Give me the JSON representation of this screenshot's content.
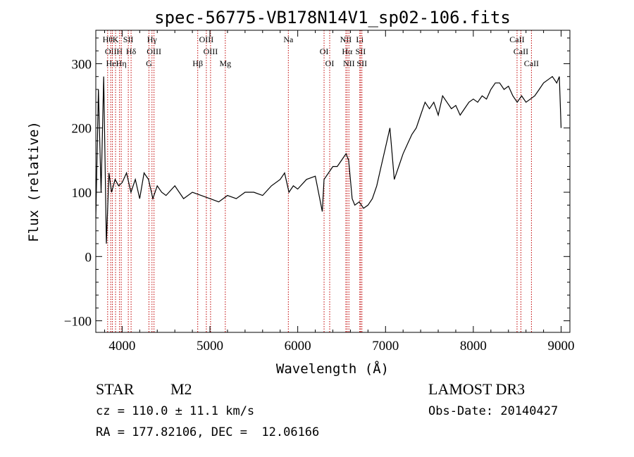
{
  "title": "spec-56775-VB178N14V1_sp02-106.fits",
  "info": {
    "class": "STAR",
    "subclass": "M2",
    "survey": "LAMOST DR3",
    "cz": "cz = 110.0 ± 11.1 km/s",
    "obs_date": "Obs-Date: 20140427",
    "radec": "RA = 177.82106, DEC =  12.06166"
  },
  "chart_data": {
    "type": "line",
    "title": "spec-56775-VB178N14V1_sp02-106.fits",
    "xlabel": "Wavelength (Å)",
    "ylabel": "Flux (relative)",
    "xlim": [
      3700,
      9100
    ],
    "ylim": [
      -118,
      352
    ],
    "xticks": [
      {
        "value": 4000,
        "label": "4000"
      },
      {
        "value": 5000,
        "label": "5000"
      },
      {
        "value": 6000,
        "label": "6000"
      },
      {
        "value": 7000,
        "label": "7000"
      },
      {
        "value": 8000,
        "label": "8000"
      },
      {
        "value": 9000,
        "label": "9000"
      }
    ],
    "yticks": [
      {
        "value": -100,
        "label": "−100"
      },
      {
        "value": 0,
        "label": "0"
      },
      {
        "value": 100,
        "label": "100"
      },
      {
        "value": 200,
        "label": "200"
      },
      {
        "value": 300,
        "label": "300"
      }
    ],
    "series": [
      {
        "color": "#000000",
        "x": [
          3700,
          3730,
          3760,
          3790,
          3820,
          3850,
          3880,
          3920,
          3960,
          4000,
          4050,
          4100,
          4150,
          4200,
          4250,
          4300,
          4350,
          4400,
          4450,
          4500,
          4600,
          4700,
          4800,
          4900,
          5000,
          5100,
          5200,
          5300,
          5400,
          5500,
          5600,
          5700,
          5800,
          5850,
          5900,
          5950,
          6000,
          6100,
          6200,
          6280,
          6300,
          6350,
          6400,
          6450,
          6500,
          6550,
          6580,
          6620,
          6650,
          6700,
          6750,
          6800,
          6850,
          6900,
          6950,
          7000,
          7050,
          7100,
          7150,
          7200,
          7250,
          7300,
          7350,
          7400,
          7450,
          7500,
          7550,
          7600,
          7650,
          7700,
          7750,
          7800,
          7850,
          7900,
          7950,
          8000,
          8050,
          8100,
          8150,
          8200,
          8250,
          8300,
          8350,
          8400,
          8450,
          8500,
          8550,
          8600,
          8650,
          8700,
          8750,
          8800,
          8850,
          8900,
          8950,
          8980,
          9000
        ],
        "y": [
          60,
          260,
          100,
          280,
          20,
          130,
          100,
          120,
          110,
          115,
          130,
          100,
          120,
          90,
          130,
          120,
          90,
          110,
          100,
          95,
          110,
          90,
          100,
          95,
          90,
          85,
          95,
          90,
          100,
          100,
          95,
          110,
          120,
          130,
          100,
          110,
          105,
          120,
          125,
          70,
          120,
          130,
          140,
          140,
          150,
          160,
          150,
          90,
          80,
          85,
          75,
          80,
          90,
          110,
          140,
          170,
          200,
          120,
          140,
          160,
          175,
          190,
          200,
          220,
          240,
          230,
          240,
          220,
          250,
          240,
          230,
          235,
          220,
          230,
          240,
          245,
          240,
          250,
          245,
          260,
          270,
          270,
          260,
          265,
          250,
          240,
          250,
          240,
          245,
          250,
          260,
          270,
          275,
          280,
          270,
          280,
          200
        ]
      }
    ],
    "spectral_lines": [
      {
        "wl": 3835,
        "label": "Hθ"
      },
      {
        "wl": 3870,
        "label": "OII"
      },
      {
        "wl": 3889,
        "label": "HeI"
      },
      {
        "wl": 3925,
        "label": "K"
      },
      {
        "wl": 3970,
        "label": "H"
      },
      {
        "wl": 3990,
        "label": "Hη"
      },
      {
        "wl": 4070,
        "label": "SII"
      },
      {
        "wl": 4102,
        "label": "Hδ"
      },
      {
        "wl": 4305,
        "label": "G"
      },
      {
        "wl": 4340,
        "label": "Hγ"
      },
      {
        "wl": 4363,
        "label": "OIII"
      },
      {
        "wl": 4861,
        "label": "Hβ"
      },
      {
        "wl": 4959,
        "label": "OIII"
      },
      {
        "wl": 5007,
        "label": "OIII"
      },
      {
        "wl": 5175,
        "label": "Mg"
      },
      {
        "wl": 5893,
        "label": "Na"
      },
      {
        "wl": 6300,
        "label": "OI"
      },
      {
        "wl": 6364,
        "label": "OI"
      },
      {
        "wl": 6548,
        "label": "NII"
      },
      {
        "wl": 6563,
        "label": "Hα"
      },
      {
        "wl": 6583,
        "label": "NII"
      },
      {
        "wl": 6707,
        "label": "Li"
      },
      {
        "wl": 6716,
        "label": "SII"
      },
      {
        "wl": 6731,
        "label": "SII"
      },
      {
        "wl": 8498,
        "label": "CaII"
      },
      {
        "wl": 8542,
        "label": "CaII"
      },
      {
        "wl": 8662,
        "label": "CaII"
      }
    ]
  }
}
